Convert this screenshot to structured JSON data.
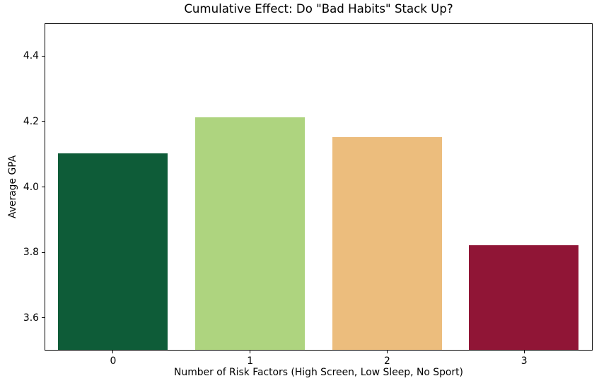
{
  "figure": {
    "background": "#ffffff"
  },
  "chart_data": {
    "type": "bar",
    "title": "Cumulative Effect: Do \"Bad Habits\" Stack Up?",
    "xlabel": "Number of Risk Factors (High Screen, Low Sleep, No Sport)",
    "ylabel": "Average GPA",
    "categories": [
      "0",
      "1",
      "2",
      "3"
    ],
    "values": [
      4.1,
      4.21,
      4.15,
      3.82
    ],
    "bar_colors": [
      "#0e5c38",
      "#aed47f",
      "#ecbd7d",
      "#901536"
    ],
    "ylim": [
      3.5,
      4.5
    ],
    "yticks": [
      3.6,
      3.8,
      4.0,
      4.2,
      4.4
    ],
    "ytick_labels": [
      "3.6",
      "3.8",
      "4.0",
      "4.2",
      "4.4"
    ],
    "bar_width_fraction": 0.8,
    "grid": false,
    "legend": false,
    "spine_color": "#000000",
    "tick_color": "#000000",
    "text_color": "#000000"
  }
}
